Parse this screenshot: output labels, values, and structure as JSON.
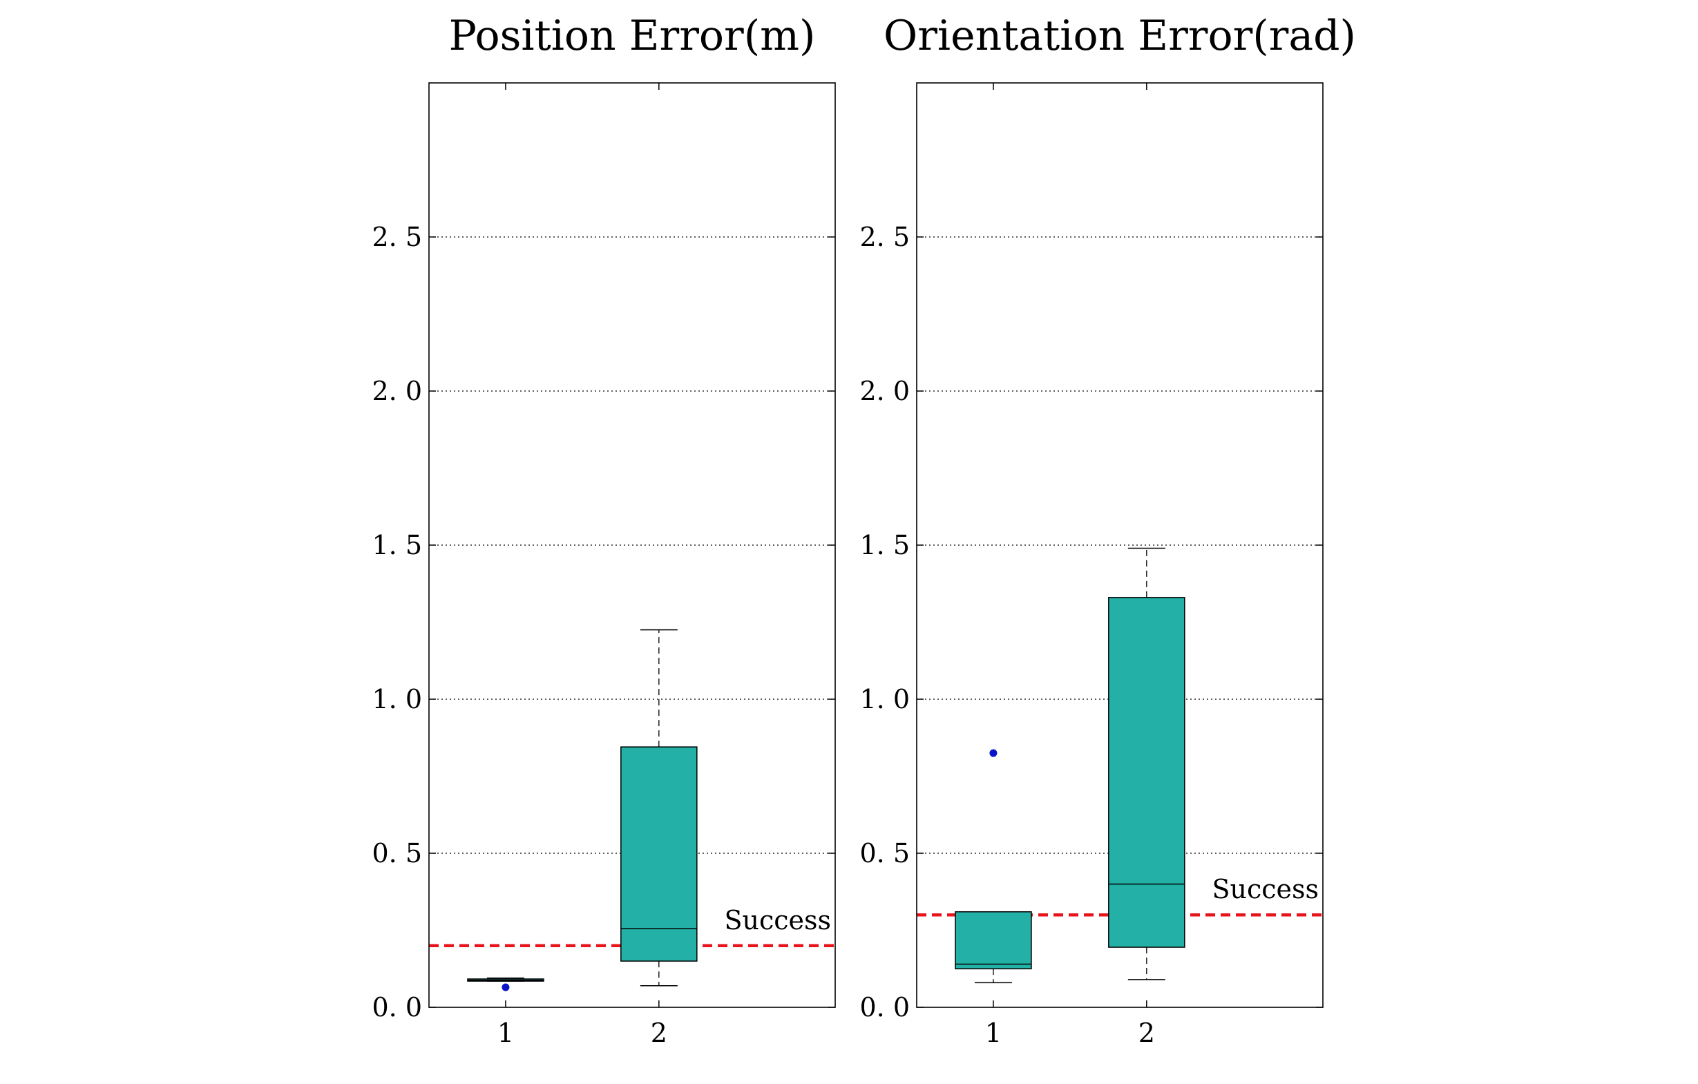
{
  "chart_data": [
    {
      "type": "box",
      "title": "Position Error(m)",
      "xlabel": "",
      "ylabel": "",
      "categories": [
        "1",
        "2"
      ],
      "ylim": [
        0,
        3.0
      ],
      "yticks": [
        0.0,
        0.5,
        1.0,
        1.5,
        2.0,
        2.5
      ],
      "ytick_labels": [
        "0. 0",
        "0. 5",
        "1. 0",
        "1. 5",
        "2. 0",
        "2. 5"
      ],
      "xlim": [
        0.5,
        3.15
      ],
      "grid": "y-dotted",
      "boxes": [
        {
          "category": "1",
          "whislo": 0.085,
          "q1": 0.085,
          "median": 0.088,
          "q3": 0.092,
          "whishi": 0.095,
          "fliers": [
            0.065
          ]
        },
        {
          "category": "2",
          "whislo": 0.07,
          "q1": 0.15,
          "median": 0.255,
          "q3": 0.845,
          "whishi": 1.225,
          "fliers": []
        }
      ],
      "threshold": {
        "value": 0.2,
        "label": "Success",
        "color": "#e8141c",
        "style": "dashed"
      },
      "box_color": "#23b0a6",
      "flier_color": "#0a14c8"
    },
    {
      "type": "box",
      "title": "Orientation Error(rad)",
      "xlabel": "",
      "ylabel": "",
      "categories": [
        "1",
        "2"
      ],
      "ylim": [
        0,
        3.0
      ],
      "yticks": [
        0.0,
        0.5,
        1.0,
        1.5,
        2.0,
        2.5
      ],
      "ytick_labels": [
        "0. 0",
        "0. 5",
        "1. 0",
        "1. 5",
        "2. 0",
        "2. 5"
      ],
      "xlim": [
        0.5,
        3.15
      ],
      "grid": "y-dotted",
      "boxes": [
        {
          "category": "1",
          "whislo": 0.08,
          "q1": 0.125,
          "median": 0.14,
          "q3": 0.31,
          "whishi": 0.31,
          "fliers": [
            0.825
          ]
        },
        {
          "category": "2",
          "whislo": 0.09,
          "q1": 0.195,
          "median": 0.4,
          "q3": 1.33,
          "whishi": 1.49,
          "fliers": []
        }
      ],
      "threshold": {
        "value": 0.3,
        "label": "Success",
        "color": "#e8141c",
        "style": "dashed"
      },
      "box_color": "#23b0a6",
      "flier_color": "#0a14c8"
    }
  ]
}
